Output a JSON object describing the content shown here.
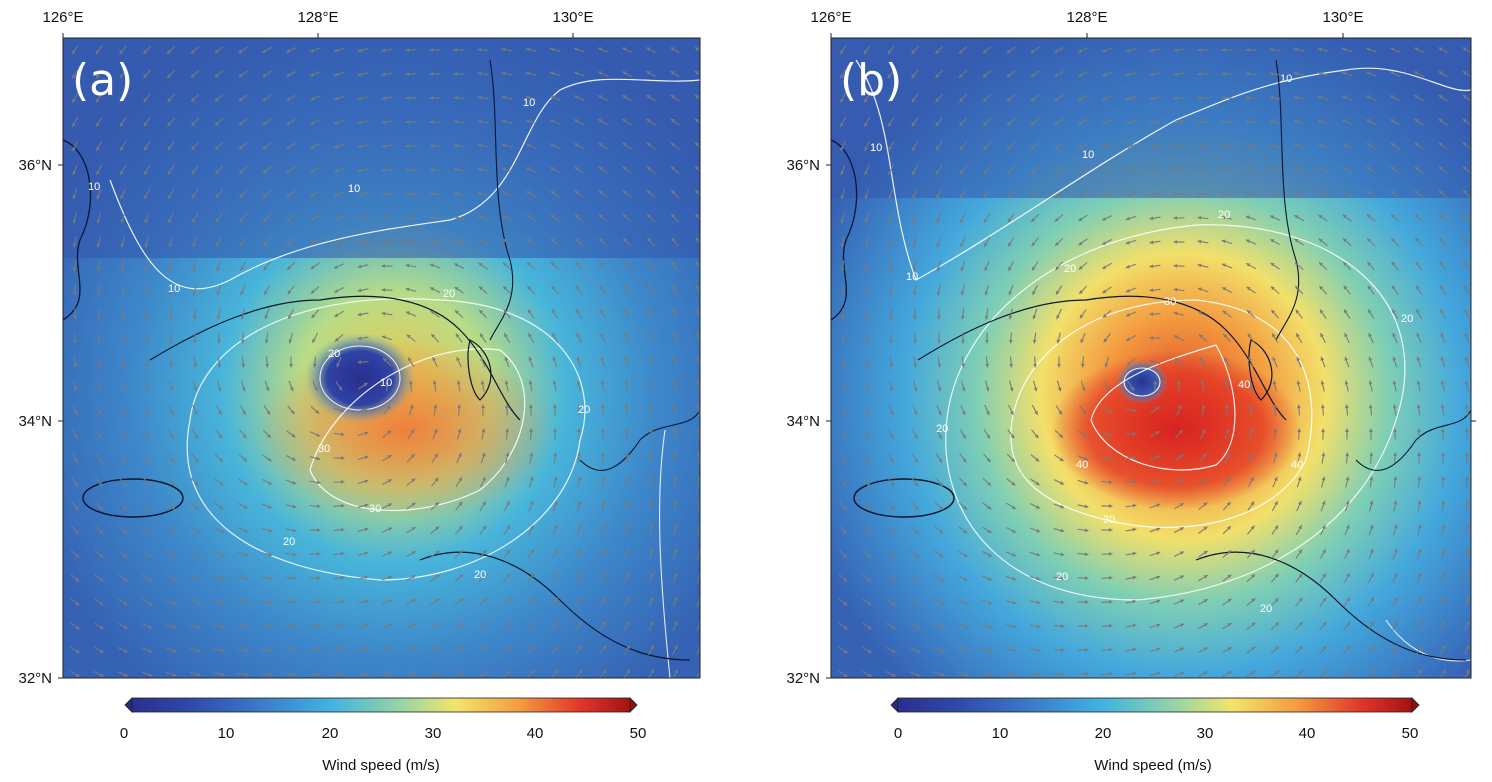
{
  "panels": [
    {
      "label": "(a)",
      "lon_ticks": [
        "126°E",
        "128°E",
        "130°E"
      ],
      "lat_ticks": [
        "36°N",
        "34°N",
        "32°N"
      ],
      "colorbar_ticks": [
        "0",
        "10",
        "20",
        "30",
        "40",
        "50"
      ],
      "colorbar_title": "Wind speed (m/s)",
      "contour_labels": [
        "10",
        "10",
        "10",
        "10",
        "10",
        "20",
        "20",
        "20",
        "20",
        "20",
        "30",
        "30"
      ]
    },
    {
      "label": "(b)",
      "lon_ticks": [
        "126°E",
        "128°E",
        "130°E"
      ],
      "lat_ticks": [
        "36°N",
        "34°N",
        "32°N"
      ],
      "colorbar_ticks": [
        "0",
        "10",
        "20",
        "30",
        "40",
        "50"
      ],
      "colorbar_title": "Wind speed (m/s)",
      "contour_labels": [
        "10",
        "10",
        "10",
        "10",
        "20",
        "20",
        "20",
        "20",
        "20",
        "20",
        "30",
        "30",
        "40",
        "40",
        "40"
      ]
    }
  ],
  "map_extent": {
    "lon": [
      126,
      131
    ],
    "lat": [
      32,
      37
    ]
  },
  "colorbar": {
    "min": 0,
    "max": 50,
    "colors": [
      "#2b2f8f",
      "#3a5fc0",
      "#42a6d9",
      "#b7dc8a",
      "#f7e36a",
      "#f28a3a",
      "#d62a24",
      "#9a1111"
    ]
  }
}
